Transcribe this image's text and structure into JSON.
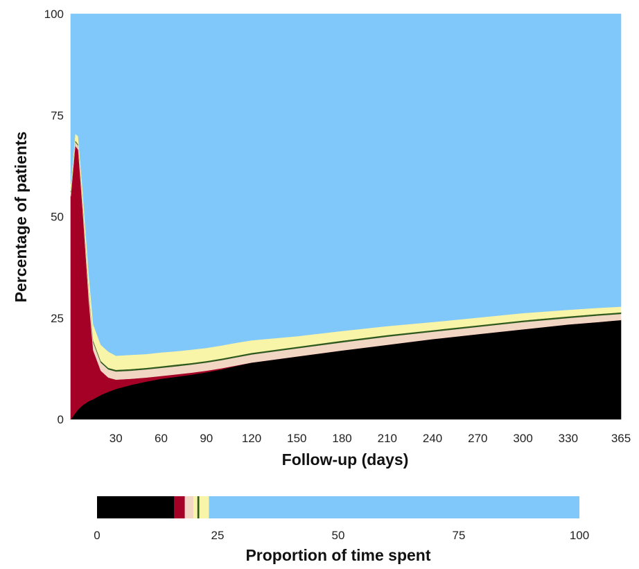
{
  "chart_data": [
    {
      "type": "area",
      "stacked": true,
      "xlabel": "Follow-up (days)",
      "ylabel": "Percentage of patients",
      "xlim": [
        0,
        365
      ],
      "ylim": [
        0,
        100
      ],
      "x_ticks": [
        30,
        60,
        90,
        120,
        150,
        180,
        210,
        240,
        270,
        300,
        330,
        365
      ],
      "y_ticks": [
        0,
        25,
        50,
        75,
        100
      ],
      "grid": false,
      "x": [
        0,
        3,
        5,
        8,
        12,
        15,
        20,
        25,
        30,
        40,
        50,
        60,
        70,
        80,
        90,
        100,
        110,
        120,
        150,
        180,
        210,
        240,
        270,
        300,
        330,
        350,
        365
      ],
      "series": [
        {
          "color": "#000000",
          "values": [
            0,
            1.5,
            2.5,
            3.5,
            4.5,
            5.0,
            6.0,
            6.8,
            7.5,
            8.5,
            9.3,
            10.0,
            10.5,
            11.0,
            11.6,
            12.3,
            13.2,
            14.0,
            15.5,
            17.0,
            18.4,
            19.8,
            21.0,
            22.2,
            23.4,
            24.0,
            24.5
          ]
        },
        {
          "color": "#A50026",
          "values": [
            55,
            66,
            64,
            48,
            25,
            12,
            6.0,
            3.5,
            2.3,
            1.5,
            1.0,
            0.7,
            0.6,
            0.5,
            0.4,
            0.3,
            0.1,
            0,
            0,
            0,
            0,
            0,
            0,
            0,
            0,
            0,
            0
          ]
        },
        {
          "color": "#F2D6C4",
          "values": [
            1.0,
            1.0,
            1.0,
            1.5,
            2.0,
            2.0,
            2.0,
            2.0,
            2.0,
            2.0,
            2.0,
            2.0,
            2.0,
            2.0,
            2.0,
            2.0,
            2.0,
            2.0,
            2.0,
            2.0,
            2.0,
            1.8,
            1.8,
            1.8,
            1.6,
            1.6,
            1.5
          ]
        },
        {
          "color": "#2E5A1E",
          "values": [
            0.3,
            0.3,
            0.3,
            0.4,
            0.4,
            0.4,
            0.4,
            0.4,
            0.4,
            0.4,
            0.4,
            0.4,
            0.4,
            0.4,
            0.4,
            0.4,
            0.4,
            0.4,
            0.4,
            0.4,
            0.4,
            0.4,
            0.4,
            0.4,
            0.4,
            0.4,
            0.4
          ]
        },
        {
          "color": "#F8F4A8",
          "values": [
            1.7,
            1.7,
            2.0,
            3.0,
            4.0,
            4.0,
            4.0,
            4.0,
            3.5,
            3.5,
            3.4,
            3.4,
            3.3,
            3.3,
            3.2,
            3.2,
            3.2,
            3.1,
            2.6,
            2.4,
            2.2,
            2.0,
            1.9,
            1.8,
            1.6,
            1.5,
            1.4
          ]
        },
        {
          "color": "#80C8FA",
          "values": [
            42,
            29.5,
            30.2,
            43.6,
            64.1,
            76.6,
            81.6,
            83.3,
            84.3,
            84.1,
            83.9,
            83.5,
            83.2,
            82.8,
            82.4,
            81.8,
            81.1,
            80.5,
            79.5,
            78.2,
            77.0,
            76.0,
            74.9,
            73.8,
            73.0,
            72.5,
            72.2
          ]
        }
      ]
    },
    {
      "type": "bar",
      "orientation": "horizontal",
      "stacked": true,
      "xlabel": "Proportion of time spent",
      "xlim": [
        0,
        100
      ],
      "x_ticks": [
        0,
        25,
        50,
        75,
        100
      ],
      "segments": [
        {
          "color": "#000000",
          "value": 16.0
        },
        {
          "color": "#A50026",
          "value": 2.2
        },
        {
          "color": "#F2D6C4",
          "value": 1.8
        },
        {
          "color": "#F8F4A8",
          "value": 0.8
        },
        {
          "color": "#2E5A1E",
          "value": 0.4
        },
        {
          "color": "#F8F4A8",
          "value": 2.0
        },
        {
          "color": "#80C8FA",
          "value": 76.8
        }
      ]
    }
  ]
}
